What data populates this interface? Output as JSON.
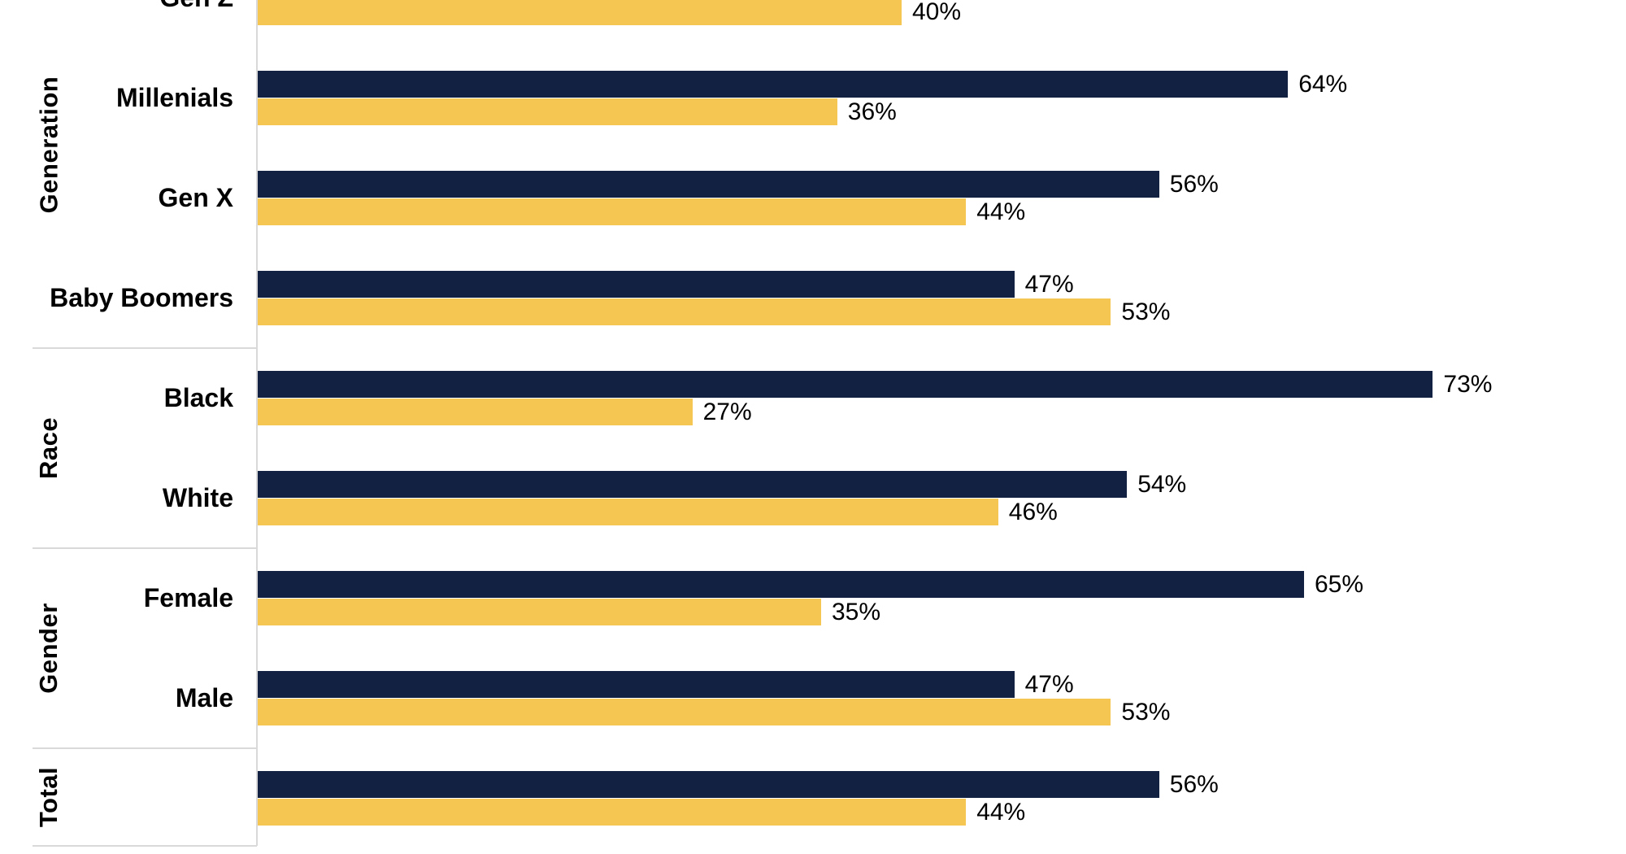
{
  "chart_data": {
    "type": "bar",
    "orientation": "horizontal",
    "title": "",
    "xlabel": "",
    "ylabel": "",
    "legend": "none",
    "grid": false,
    "xlim": [
      0,
      85
    ],
    "value_suffix": "%",
    "background_color": "#FFFFFF",
    "divider_color": "#D9D9D9",
    "series_colors": {
      "navy": "#122142",
      "gold": "#F5C752"
    },
    "groups": [
      {
        "label": "Generation",
        "rows": [
          {
            "label": "Gen Z",
            "navy": null,
            "gold": 40,
            "note": "row clipped at top edge of image"
          },
          {
            "label": "Millenials",
            "navy": 64,
            "gold": 36
          },
          {
            "label": "Gen X",
            "navy": 56,
            "gold": 44
          },
          {
            "label": "Baby Boomers",
            "navy": 47,
            "gold": 53
          }
        ]
      },
      {
        "label": "Race",
        "rows": [
          {
            "label": "Black",
            "navy": 73,
            "gold": 27
          },
          {
            "label": "White",
            "navy": 54,
            "gold": 46
          }
        ]
      },
      {
        "label": "Gender",
        "rows": [
          {
            "label": "Female",
            "navy": 65,
            "gold": 35
          },
          {
            "label": "Male",
            "navy": 47,
            "gold": 53
          }
        ]
      },
      {
        "label": "Total",
        "rows": [
          {
            "label": "",
            "navy": 56,
            "gold": 44
          }
        ]
      }
    ]
  }
}
